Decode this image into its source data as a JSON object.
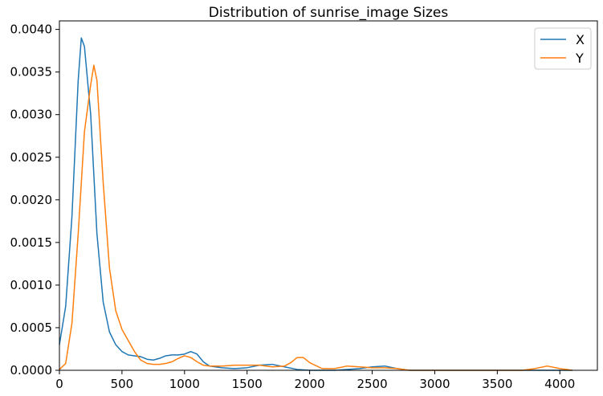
{
  "chart_data": {
    "type": "line",
    "title": "Distribution of sunrise_image Sizes",
    "xlabel": "",
    "ylabel": "",
    "xlim": [
      0,
      4300
    ],
    "ylim": [
      0,
      0.0041
    ],
    "grid": false,
    "legend": "top-right",
    "x_ticks": [
      "0",
      "500",
      "1000",
      "1500",
      "2000",
      "2500",
      "3000",
      "3500",
      "4000"
    ],
    "y_ticks": [
      "0.0000",
      "0.0005",
      "0.0010",
      "0.0015",
      "0.0020",
      "0.0025",
      "0.0030",
      "0.0035",
      "0.0040"
    ],
    "series": [
      {
        "name": "X",
        "color": "#1f77b4",
        "points": [
          [
            0,
            0.0003
          ],
          [
            50,
            0.00075
          ],
          [
            100,
            0.0018
          ],
          [
            150,
            0.0034
          ],
          [
            175,
            0.0039
          ],
          [
            200,
            0.0038
          ],
          [
            250,
            0.003
          ],
          [
            300,
            0.0016
          ],
          [
            350,
            0.0008
          ],
          [
            400,
            0.00045
          ],
          [
            450,
            0.0003
          ],
          [
            500,
            0.00022
          ],
          [
            550,
            0.00018
          ],
          [
            600,
            0.00017
          ],
          [
            650,
            0.00016
          ],
          [
            700,
            0.00013
          ],
          [
            750,
            0.00012
          ],
          [
            800,
            0.00014
          ],
          [
            850,
            0.00017
          ],
          [
            900,
            0.00018
          ],
          [
            950,
            0.00018
          ],
          [
            1000,
            0.00019
          ],
          [
            1050,
            0.00022
          ],
          [
            1100,
            0.00019
          ],
          [
            1150,
            0.0001
          ],
          [
            1200,
            5e-05
          ],
          [
            1300,
            3e-05
          ],
          [
            1400,
            2e-05
          ],
          [
            1500,
            3e-05
          ],
          [
            1600,
            6e-05
          ],
          [
            1700,
            7e-05
          ],
          [
            1800,
            4e-05
          ],
          [
            1900,
            1e-05
          ],
          [
            2000,
            0.0
          ],
          [
            2200,
            0.0
          ],
          [
            2400,
            2e-05
          ],
          [
            2500,
            4e-05
          ],
          [
            2600,
            5e-05
          ],
          [
            2700,
            2e-05
          ],
          [
            2800,
            0.0
          ],
          [
            3000,
            0.0
          ],
          [
            3500,
            0.0
          ],
          [
            4000,
            0.0
          ],
          [
            4100,
            0.0
          ]
        ]
      },
      {
        "name": "Y",
        "color": "#ff7f0e",
        "points": [
          [
            0,
            1e-05
          ],
          [
            50,
            8e-05
          ],
          [
            100,
            0.00055
          ],
          [
            150,
            0.0016
          ],
          [
            200,
            0.0028
          ],
          [
            250,
            0.00335
          ],
          [
            275,
            0.00358
          ],
          [
            300,
            0.0034
          ],
          [
            350,
            0.0022
          ],
          [
            400,
            0.0012
          ],
          [
            450,
            0.0007
          ],
          [
            500,
            0.00048
          ],
          [
            550,
            0.00035
          ],
          [
            600,
            0.00022
          ],
          [
            650,
            0.00012
          ],
          [
            700,
            8e-05
          ],
          [
            750,
            7e-05
          ],
          [
            800,
            7e-05
          ],
          [
            850,
            8e-05
          ],
          [
            900,
            0.0001
          ],
          [
            950,
            0.00014
          ],
          [
            1000,
            0.00017
          ],
          [
            1050,
            0.00015
          ],
          [
            1100,
            0.0001
          ],
          [
            1150,
            6e-05
          ],
          [
            1200,
            5e-05
          ],
          [
            1300,
            5e-05
          ],
          [
            1400,
            6e-05
          ],
          [
            1500,
            6e-05
          ],
          [
            1600,
            6e-05
          ],
          [
            1700,
            4e-05
          ],
          [
            1800,
            5e-05
          ],
          [
            1850,
            9e-05
          ],
          [
            1900,
            0.00015
          ],
          [
            1950,
            0.00015
          ],
          [
            2000,
            9e-05
          ],
          [
            2100,
            2e-05
          ],
          [
            2200,
            2e-05
          ],
          [
            2300,
            5e-05
          ],
          [
            2400,
            4e-05
          ],
          [
            2500,
            3e-05
          ],
          [
            2600,
            3e-05
          ],
          [
            2700,
            2e-05
          ],
          [
            2800,
            0.0
          ],
          [
            3000,
            0.0
          ],
          [
            3500,
            0.0
          ],
          [
            3700,
            0.0
          ],
          [
            3800,
            2e-05
          ],
          [
            3900,
            5e-05
          ],
          [
            4000,
            2e-05
          ],
          [
            4100,
            0.0
          ]
        ]
      }
    ]
  }
}
